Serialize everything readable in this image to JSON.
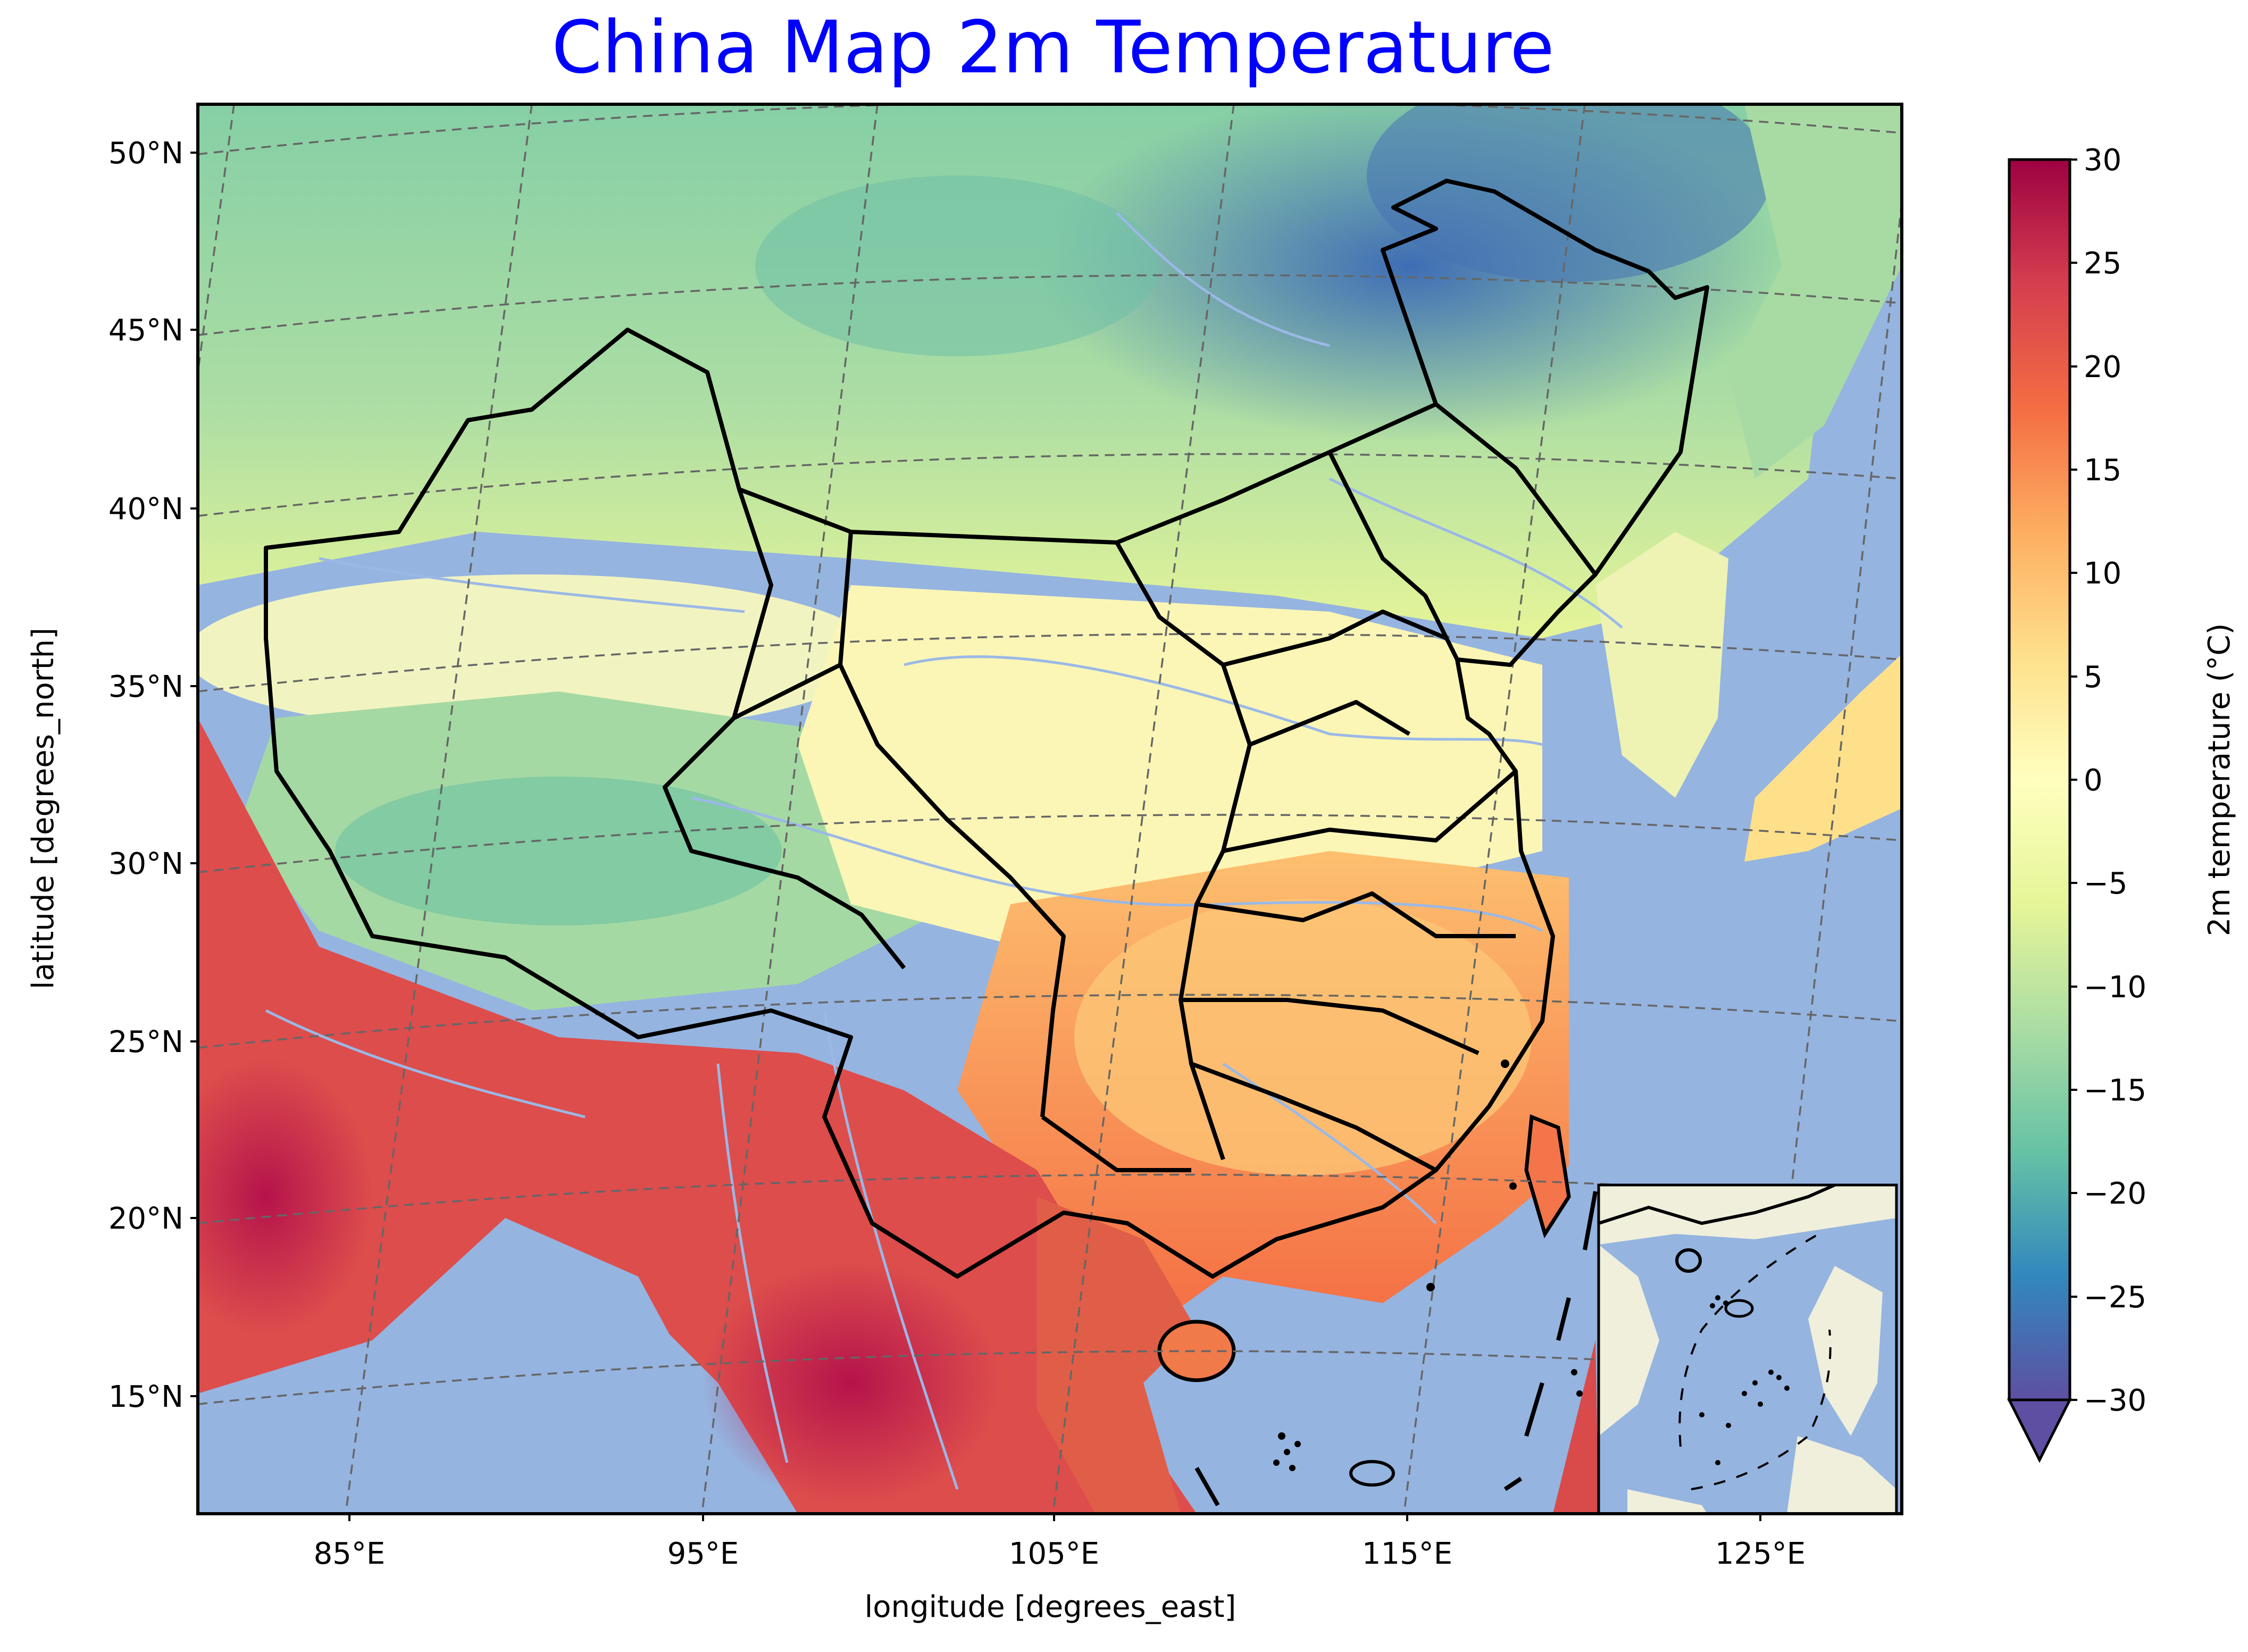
{
  "title": "China Map 2m Temperature",
  "axes": {
    "xlabel": "longitude [degrees_east]",
    "ylabel": "latitude [degrees_north]",
    "lon_ticks": [
      "85°E",
      "95°E",
      "105°E",
      "115°E",
      "125°E"
    ],
    "lat_ticks": [
      "50°N",
      "45°N",
      "40°N",
      "35°N",
      "30°N",
      "25°N",
      "20°N",
      "15°N"
    ]
  },
  "colorbar": {
    "label": "2m temperature (°C)",
    "ticks": [
      "30",
      "25",
      "20",
      "15",
      "10",
      "5",
      "0",
      "−5",
      "−10",
      "−15",
      "−20",
      "−25",
      "−30"
    ],
    "range": [
      -30,
      30
    ],
    "extend": "min",
    "colormap": "Spectral_r",
    "stops": [
      "#5e4fa2",
      "#3288bd",
      "#66c2a5",
      "#abdda4",
      "#e6f598",
      "#ffffbf",
      "#fee08b",
      "#fdae61",
      "#f46d43",
      "#d53e4f",
      "#9e0142"
    ]
  },
  "colors": {
    "ocean": "#95b4e0",
    "land": "#efefdb",
    "boundary": "#000000",
    "river": "#9bb8e6",
    "gridline": "#666666"
  },
  "inset": {
    "description_shown": false
  }
}
